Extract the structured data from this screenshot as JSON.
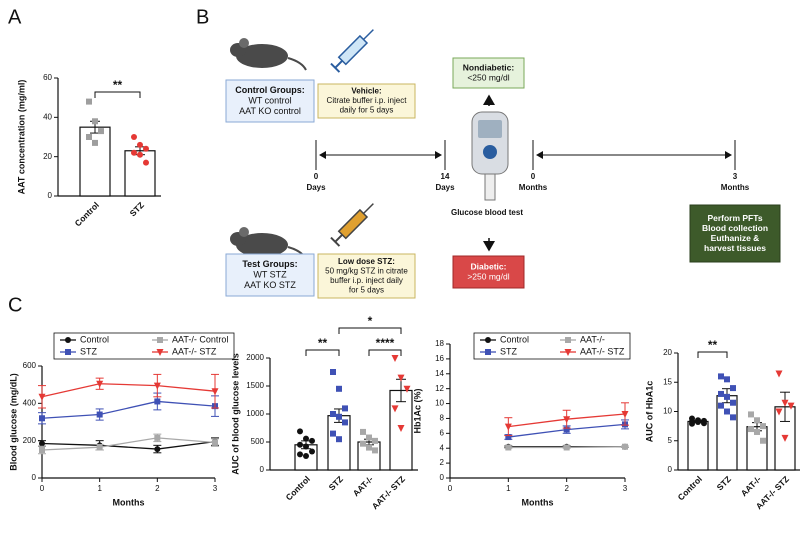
{
  "panel_labels": [
    "A",
    "B",
    "C"
  ],
  "diagram": {
    "control_groups": [
      "Control Groups:",
      "WT control",
      "AAT KO control"
    ],
    "vehicle": [
      "Vehicle:",
      "Citrate buffer i.p. inject",
      "daily for 5 days"
    ],
    "test_groups": [
      "Test Groups:",
      "WT STZ",
      "AAT KO STZ"
    ],
    "low_dose": [
      "Low dose STZ:",
      "50 mg/kg STZ in citrate",
      "buffer i.p. inject daily",
      "for 5 days"
    ],
    "nondiabetic": [
      "Nondiabetic:",
      "<250 mg/dl"
    ],
    "diabetic": [
      "Diabetic:",
      ">250 mg/dl"
    ],
    "endpoint": [
      "Perform PFTs",
      "Blood collection",
      "Euthanize &",
      "harvest tissues"
    ],
    "glucose_test": "Glucose blood test",
    "timeline": [
      {
        "value": "0",
        "unit": "Days"
      },
      {
        "value": "14",
        "unit": "Days"
      },
      {
        "value": "0",
        "unit": "Months"
      },
      {
        "value": "3",
        "unit": "Months"
      }
    ]
  },
  "chart_data": [
    {
      "type": "bar",
      "y_label": "AAT concentration (mg/ml)",
      "categories": [
        "Control",
        "STZ"
      ],
      "values": [
        35,
        23
      ],
      "errors": [
        3,
        2
      ],
      "colors": [
        "#9e9e9e",
        "#e53935"
      ],
      "markers": [
        "square",
        "circle"
      ],
      "points": [
        [
          48,
          38,
          33,
          30,
          27
        ],
        [
          30,
          26,
          24,
          22,
          21,
          17
        ]
      ],
      "annotations": [
        "**"
      ],
      "ylim": [
        0,
        60
      ],
      "yticks": [
        0,
        20,
        40,
        60
      ]
    },
    {
      "type": "line",
      "x_label": "Months",
      "y_label": "Blood glucose (mg/dL)",
      "x": [
        0,
        1,
        2,
        3
      ],
      "series": [
        {
          "name": "Control",
          "color": "#111111",
          "marker": "circle",
          "values": [
            185,
            175,
            155,
            195
          ],
          "errors": [
            15,
            25,
            20,
            20
          ]
        },
        {
          "name": "AAT-/- Control",
          "color": "#a8a8a8",
          "marker": "square",
          "values": [
            150,
            165,
            215,
            190
          ],
          "errors": [
            20,
            15,
            20,
            20
          ]
        },
        {
          "name": "STZ",
          "color": "#3f51b5",
          "marker": "square",
          "values": [
            320,
            340,
            410,
            385
          ],
          "errors": [
            30,
            30,
            45,
            55
          ]
        },
        {
          "name": "AAT-/- STZ",
          "color": "#e53935",
          "marker": "triangle",
          "values": [
            435,
            505,
            495,
            465
          ],
          "errors": [
            60,
            30,
            60,
            90
          ]
        }
      ],
      "xlim": [
        0,
        3
      ],
      "xticks": [
        0,
        1,
        2,
        3
      ],
      "ylim": [
        0,
        600
      ],
      "yticks": [
        0,
        200,
        400,
        600
      ]
    },
    {
      "type": "bar",
      "y_label": "AUC of blood glucose levels",
      "categories": [
        "Control",
        "STZ",
        "AAT-/-",
        "AAT-/- STZ"
      ],
      "values": [
        450,
        970,
        500,
        1420
      ],
      "errors": [
        70,
        120,
        50,
        200
      ],
      "colors": [
        "#111111",
        "#3f51b5",
        "#a8a8a8",
        "#e53935"
      ],
      "markers": [
        "circle",
        "square",
        "square",
        "triangle"
      ],
      "points": [
        [
          690,
          560,
          520,
          450,
          420,
          330,
          280,
          250
        ],
        [
          1750,
          1450,
          1100,
          1000,
          950,
          850,
          650,
          550
        ],
        [
          680,
          580,
          520,
          470,
          400,
          350
        ],
        [
          2000,
          1650,
          1450,
          1100,
          750
        ]
      ],
      "annotations": [
        "**",
        "*",
        "****"
      ],
      "ylim": [
        0,
        2000
      ],
      "yticks": [
        0,
        500,
        1000,
        1500,
        2000
      ]
    },
    {
      "type": "line",
      "x_label": "Months",
      "y_label": "Hb1Ac (%)",
      "x": [
        1,
        2,
        3
      ],
      "series": [
        {
          "name": "Control",
          "color": "#111111",
          "marker": "circle",
          "values": [
            4.2,
            4.2,
            4.2
          ],
          "errors": [
            0.1,
            0.1,
            0.1
          ]
        },
        {
          "name": "AAT-/-",
          "color": "#a8a8a8",
          "marker": "square",
          "values": [
            4.1,
            4.1,
            4.2
          ],
          "errors": [
            0.1,
            0.1,
            0.1
          ]
        },
        {
          "name": "STZ",
          "color": "#3f51b5",
          "marker": "square",
          "values": [
            5.5,
            6.5,
            7.2
          ],
          "errors": [
            0.3,
            0.5,
            0.6
          ]
        },
        {
          "name": "AAT-/- STZ",
          "color": "#e53935",
          "marker": "triangle",
          "values": [
            6.9,
            7.9,
            8.6
          ],
          "errors": [
            1.2,
            1.2,
            1.5
          ]
        }
      ],
      "xlim": [
        0,
        3
      ],
      "xticks": [
        0,
        1,
        2,
        3
      ],
      "ylim": [
        0,
        18
      ],
      "yticks": [
        0,
        2,
        4,
        6,
        8,
        10,
        12,
        14,
        16,
        18
      ]
    },
    {
      "type": "bar",
      "y_label": "AUC of HbA1c",
      "categories": [
        "Control",
        "STZ",
        "AAT-/-",
        "AAT-/- STZ"
      ],
      "values": [
        8.3,
        12.7,
        7.4,
        10.8
      ],
      "errors": [
        0.2,
        1.2,
        0.7,
        2.5
      ],
      "colors": [
        "#111111",
        "#3f51b5",
        "#a8a8a8",
        "#e53935"
      ],
      "markers": [
        "circle",
        "square",
        "square",
        "triangle"
      ],
      "points": [
        [
          8.8,
          8.5,
          8.4,
          8.3,
          8.2,
          8.0,
          7.9
        ],
        [
          16,
          15.5,
          14,
          13,
          12.5,
          11.5,
          11,
          10,
          9
        ],
        [
          9.5,
          8.5,
          7.5,
          7,
          6.5,
          5
        ],
        [
          16.5,
          11.5,
          11,
          10,
          5.5
        ]
      ],
      "annotations": [
        "**"
      ],
      "ylim": [
        0,
        20
      ],
      "yticks": [
        0,
        5,
        10,
        15,
        20
      ]
    }
  ]
}
